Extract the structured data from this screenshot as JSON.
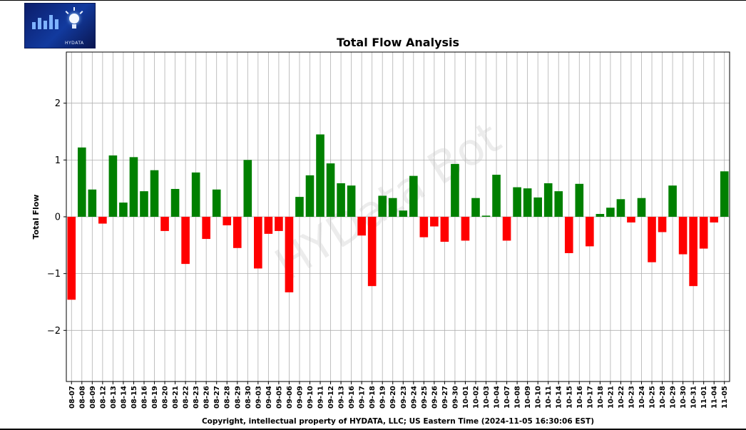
{
  "chart_data": {
    "type": "bar",
    "title": "Total Flow Analysis",
    "ylabel": "Total Flow",
    "xlabel": "",
    "ylim": [
      -2.9,
      2.9
    ],
    "yticks": [
      -2,
      -1,
      0,
      1,
      2
    ],
    "ytick_labels": [
      "−2",
      "−1",
      "0",
      "1",
      "2"
    ],
    "grid": true,
    "positive_color": "#008000",
    "negative_color": "#ff0000",
    "categories": [
      "08-07",
      "08-08",
      "08-09",
      "08-12",
      "08-13",
      "08-14",
      "08-15",
      "08-16",
      "08-19",
      "08-20",
      "08-21",
      "08-22",
      "08-23",
      "08-26",
      "08-27",
      "08-28",
      "08-29",
      "08-30",
      "09-03",
      "09-04",
      "09-05",
      "09-06",
      "09-09",
      "09-10",
      "09-11",
      "09-12",
      "09-13",
      "09-16",
      "09-17",
      "09-18",
      "09-19",
      "09-20",
      "09-23",
      "09-24",
      "09-25",
      "09-26",
      "09-27",
      "09-30",
      "10-01",
      "10-02",
      "10-03",
      "10-04",
      "10-07",
      "10-08",
      "10-09",
      "10-10",
      "10-11",
      "10-14",
      "10-15",
      "10-16",
      "10-17",
      "10-18",
      "10-21",
      "10-22",
      "10-23",
      "10-24",
      "10-25",
      "10-28",
      "10-29",
      "10-30",
      "10-31",
      "11-01",
      "11-04",
      "11-05"
    ],
    "values": [
      -1.46,
      1.22,
      0.48,
      -0.12,
      1.08,
      0.25,
      1.05,
      0.45,
      0.82,
      -0.25,
      0.49,
      -0.83,
      0.78,
      -0.39,
      0.48,
      -0.15,
      -0.55,
      1.0,
      -0.91,
      -0.3,
      -0.25,
      -1.33,
      0.35,
      0.73,
      1.45,
      0.94,
      0.59,
      0.55,
      -0.33,
      -1.22,
      0.37,
      0.33,
      0.11,
      0.72,
      -0.36,
      -0.17,
      -0.44,
      0.93,
      -0.42,
      0.33,
      0.02,
      0.74,
      -0.42,
      0.52,
      0.5,
      0.34,
      0.59,
      0.45,
      -0.64,
      0.58,
      -0.52,
      0.05,
      0.16,
      0.31,
      -0.1,
      0.33,
      -0.8,
      -0.27,
      0.55,
      -0.66,
      -1.22,
      -0.56,
      -0.1,
      0.8
    ]
  },
  "watermark": "HYData Bot",
  "footer": "Copyright, intellectual property of HYDATA, LLC; US Eastern Time (2024-11-05 16:30:06 EST)",
  "logo": {
    "text": "HYDATA"
  }
}
